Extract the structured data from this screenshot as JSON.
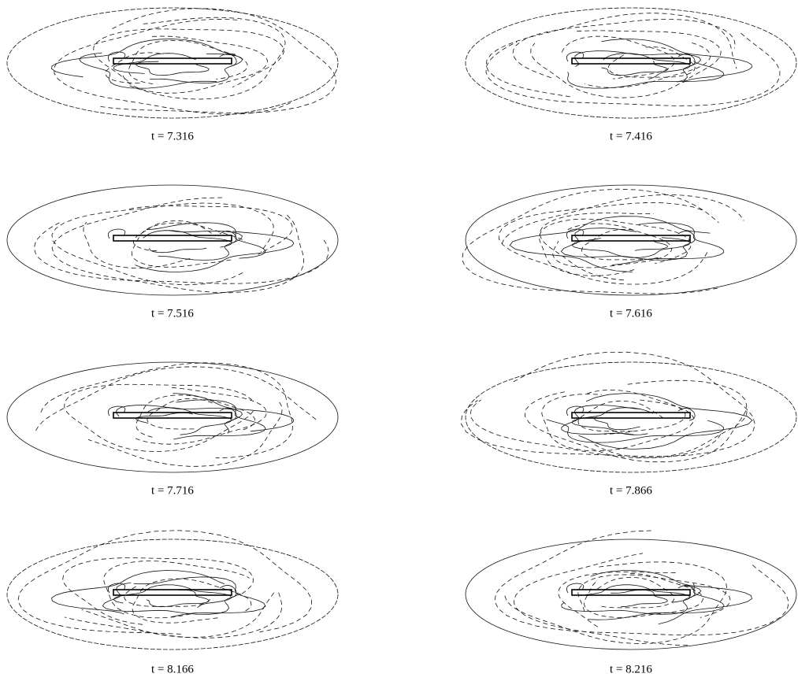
{
  "figure": {
    "panels": [
      {
        "label": "t = 7.316"
      },
      {
        "label": "t = 7.416"
      },
      {
        "label": "t = 7.516"
      },
      {
        "label": "t = 7.616"
      },
      {
        "label": "t = 7.716"
      },
      {
        "label": "t = 7.866"
      },
      {
        "label": "t = 8.166"
      },
      {
        "label": "t = 8.216"
      }
    ]
  }
}
